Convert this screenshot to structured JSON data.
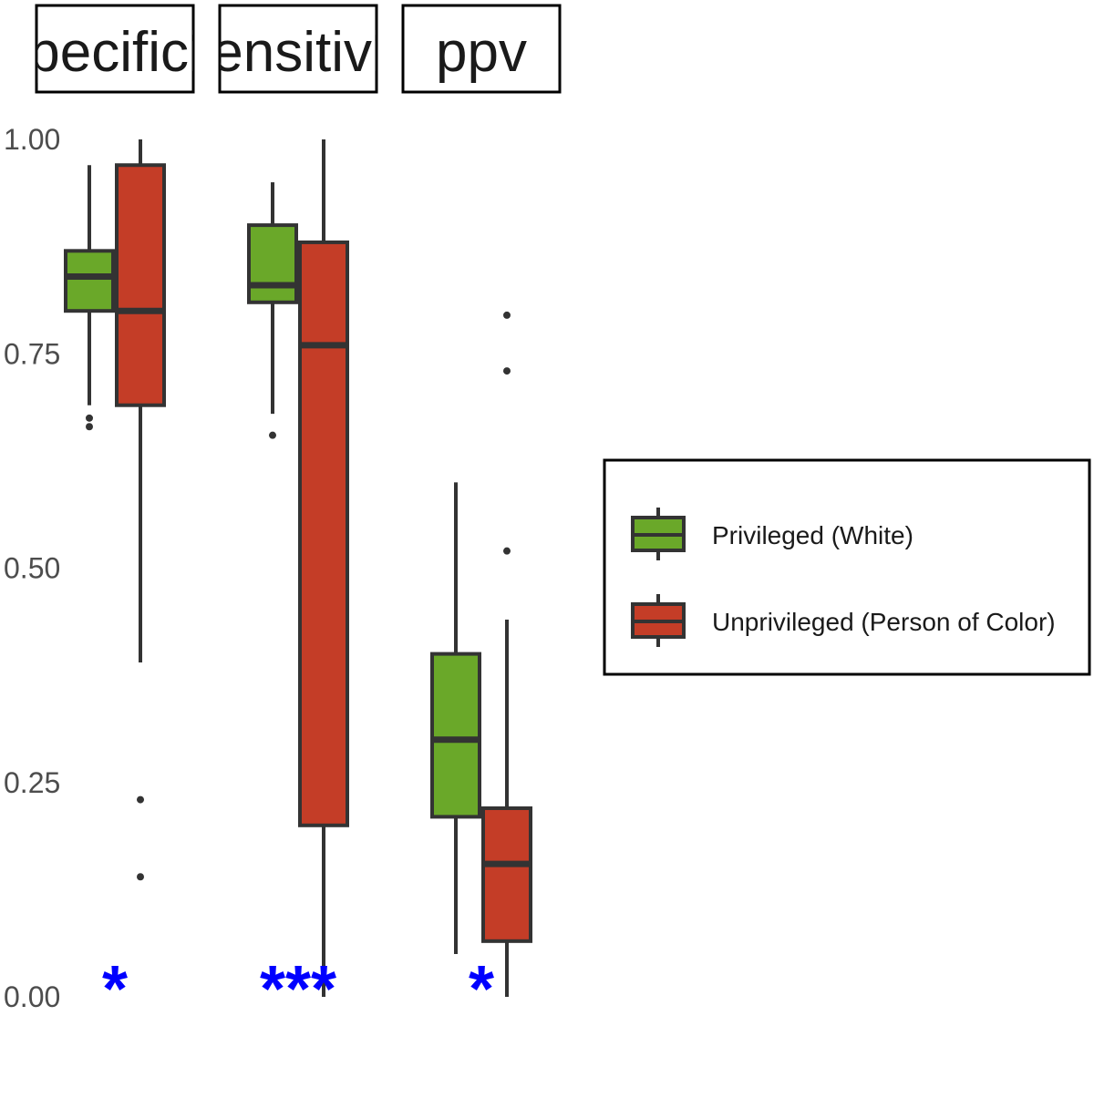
{
  "chart_data": {
    "type": "boxplot",
    "facets": [
      "specificity",
      "sensitivity",
      "ppv"
    ],
    "facet_labels_visible": [
      "pecifici",
      "ensitivi",
      "ppv"
    ],
    "y_ticks": [
      "0.00",
      "0.25",
      "0.50",
      "0.75",
      "1.00"
    ],
    "ylim": [
      0,
      1
    ],
    "grid": false,
    "legend": {
      "placement": "right",
      "entries": [
        {
          "label": "Privileged (White)",
          "color": "#6aa829"
        },
        {
          "label": "Unprivileged (Person of Color)",
          "color": "#c43d27"
        }
      ]
    },
    "series": [
      {
        "name": "Privileged (White)",
        "color": "#6aa829",
        "boxes": [
          {
            "facet": "specificity",
            "whisker_low": 0.69,
            "q1": 0.8,
            "median": 0.84,
            "q3": 0.87,
            "whisker_high": 0.97,
            "outliers": [
              0.665,
              0.675
            ]
          },
          {
            "facet": "sensitivity",
            "whisker_low": 0.68,
            "q1": 0.81,
            "median": 0.83,
            "q3": 0.9,
            "whisker_high": 0.95,
            "outliers": [
              0.655
            ]
          },
          {
            "facet": "ppv",
            "whisker_low": 0.05,
            "q1": 0.21,
            "median": 0.3,
            "q3": 0.4,
            "whisker_high": 0.6,
            "outliers": []
          }
        ]
      },
      {
        "name": "Unprivileged (Person of Color)",
        "color": "#c43d27",
        "boxes": [
          {
            "facet": "specificity",
            "whisker_low": 0.39,
            "q1": 0.69,
            "median": 0.8,
            "q3": 0.97,
            "whisker_high": 1.0,
            "outliers": [
              0.14,
              0.23
            ]
          },
          {
            "facet": "sensitivity",
            "whisker_low": 0.0,
            "q1": 0.2,
            "median": 0.76,
            "q3": 0.88,
            "whisker_high": 1.0,
            "outliers": []
          },
          {
            "facet": "ppv",
            "whisker_low": 0.0,
            "q1": 0.065,
            "median": 0.155,
            "q3": 0.22,
            "whisker_high": 0.44,
            "outliers": [
              0.52,
              0.73,
              0.795
            ]
          }
        ]
      }
    ],
    "annotations": [
      {
        "facet": "specificity",
        "text": "*",
        "color": "#0000ff"
      },
      {
        "facet": "sensitivity",
        "text": "***",
        "color": "#0000ff"
      },
      {
        "facet": "ppv",
        "text": "*",
        "color": "#0000ff"
      }
    ]
  }
}
